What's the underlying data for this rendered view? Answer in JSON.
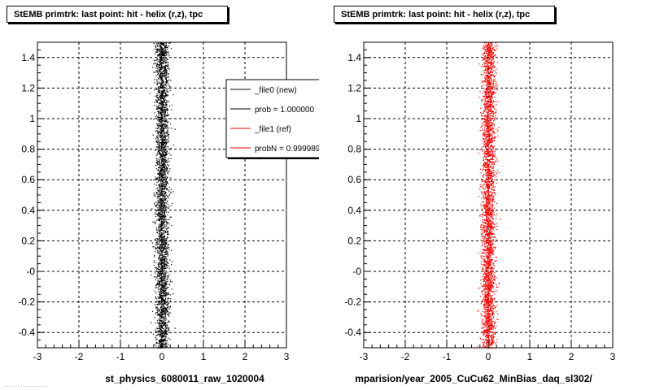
{
  "chart_data": [
    {
      "type": "scatter",
      "title": "StEMB primtrk: last point: hit - helix (r,z), tpc",
      "xlabel": "st_physics_6080011_raw_1020004",
      "ylabel": "",
      "xlim": [
        -3,
        3
      ],
      "ylim": [
        -0.5,
        1.5
      ],
      "x_ticks": [
        "-3",
        "-2",
        "-1",
        "0",
        "1",
        "2",
        "3"
      ],
      "y_ticks": [
        "-0.4",
        "-0.2",
        "-0",
        "0.2",
        "0.4",
        "0.6",
        "0.8",
        "1",
        "1.2",
        "1.4"
      ],
      "grid": true,
      "series": [
        {
          "name": "_file0 (new)",
          "color": "#000000",
          "x_center": 0.0,
          "x_spread": 0.08,
          "y_range": [
            -0.5,
            1.5
          ]
        }
      ],
      "legend": {
        "placement": "top-right",
        "entries": [
          {
            "label": "_file0 (new)",
            "color": "#000000"
          },
          {
            "label": "prob = 1.000000",
            "color": "#000000"
          },
          {
            "label": "_file1 (ref)",
            "color": "#ff0000"
          },
          {
            "label": "probN = 0.999989",
            "color": "#ff0000"
          }
        ]
      }
    },
    {
      "type": "scatter",
      "title": "StEMB primtrk: last point: hit - helix (r,z), tpc",
      "xlabel": "mparision/year_2005_CuCu62_MinBias_daq_sl302/",
      "ylabel": "",
      "xlim": [
        -3,
        3
      ],
      "ylim": [
        -0.5,
        1.5
      ],
      "x_ticks": [
        "-3",
        "-2",
        "-1",
        "0",
        "1",
        "2",
        "3"
      ],
      "y_ticks": [
        "-0.4",
        "-0.2",
        "-0",
        "0.2",
        "0.4",
        "0.6",
        "0.8",
        "1",
        "1.2",
        "1.4"
      ],
      "grid": true,
      "series": [
        {
          "name": "_file1 (ref)",
          "color": "#ff0000",
          "x_center": 0.0,
          "x_spread": 0.08,
          "y_range": [
            -0.5,
            1.5
          ]
        }
      ]
    }
  ],
  "footer": {
    "text": "..... .... . .......... ...."
  }
}
